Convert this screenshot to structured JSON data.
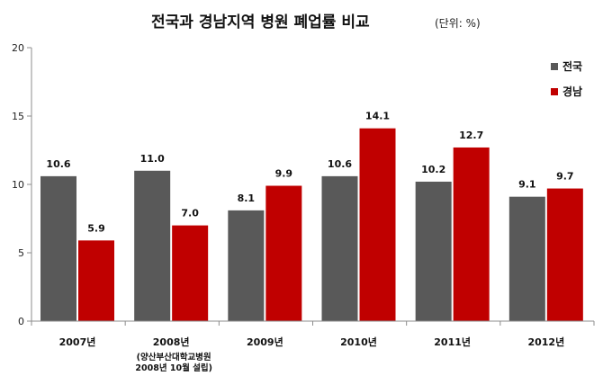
{
  "chart_data": {
    "type": "bar",
    "title": "전국과 경남지역 병원 폐업률 비교",
    "unit_note": "(단위: %)",
    "categories": [
      "2007년",
      "2008년",
      "2009년",
      "2010년",
      "2011년",
      "2012년"
    ],
    "category_note": {
      "index": 1,
      "lines": [
        "(양산부산대학교병원",
        "2008년 10월 설립)"
      ]
    },
    "series": [
      {
        "name": "전국",
        "color": "#595959",
        "values": [
          10.6,
          11.0,
          8.1,
          10.6,
          10.2,
          9.1
        ],
        "labels": [
          "10.6",
          "11.0",
          "8.1",
          "10.6",
          "10.2",
          "9.1"
        ]
      },
      {
        "name": "경남",
        "color": "#c00000",
        "values": [
          5.9,
          7.0,
          9.9,
          14.1,
          12.7,
          9.7
        ],
        "labels": [
          "5.9",
          "7.0",
          "9.9",
          "14.1",
          "12.7",
          "9.7"
        ]
      }
    ],
    "ylim": [
      0,
      20
    ],
    "yticks": [
      "0",
      "5",
      "10",
      "15",
      "20"
    ],
    "grid": false,
    "legend": "top-right"
  }
}
